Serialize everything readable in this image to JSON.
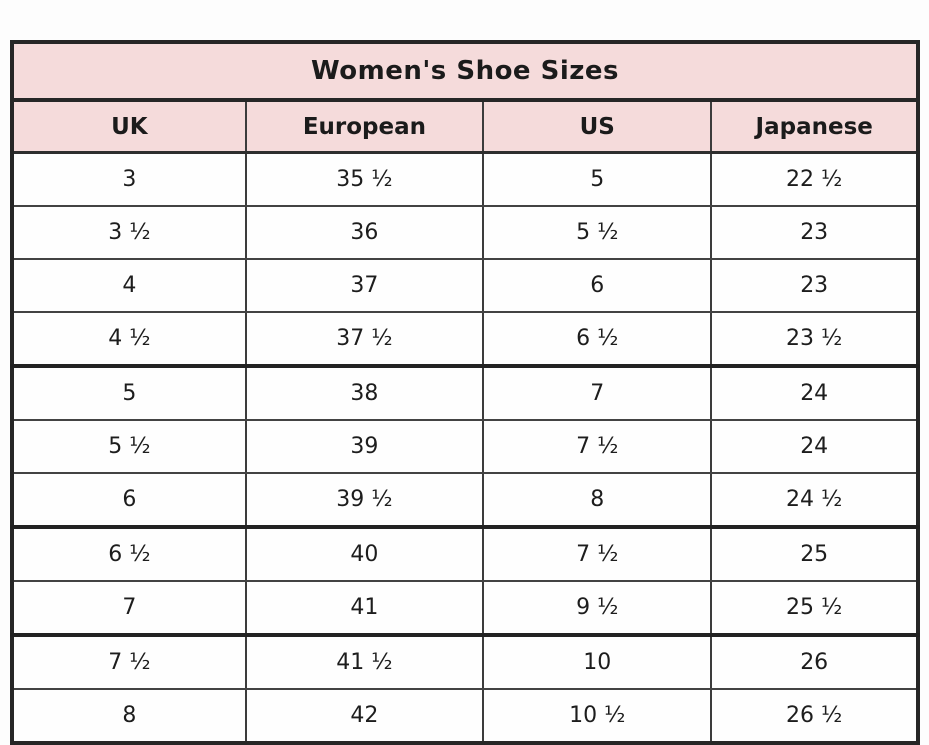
{
  "table": {
    "title": "Women's Shoe Sizes",
    "columns": [
      "UK",
      "European",
      "US",
      "Japanese"
    ],
    "rows": [
      [
        "3",
        "35 ½",
        "5",
        "22 ½"
      ],
      [
        "3 ½",
        "36",
        "5 ½",
        "23"
      ],
      [
        "4",
        "37",
        "6",
        "23"
      ],
      [
        "4 ½",
        "37 ½",
        "6 ½",
        "23 ½"
      ],
      [
        "5",
        "38",
        "7",
        "24"
      ],
      [
        "5 ½",
        "39",
        "7 ½",
        "24"
      ],
      [
        "6",
        "39 ½",
        "8",
        "24 ½"
      ],
      [
        "6 ½",
        "40",
        "7 ½",
        "25"
      ],
      [
        "7",
        "41",
        "9 ½",
        "25 ½"
      ],
      [
        "7 ½",
        "41 ½",
        "10",
        "26"
      ],
      [
        "8",
        "42",
        "10 ½",
        "26 ½"
      ]
    ],
    "thick_border_after_rows": [
      4,
      7,
      9
    ],
    "colors": {
      "header_background": "#f5dbdb",
      "outer_border": "#262626",
      "grid_line": "#434343",
      "text": "#1d1d1d",
      "page_background": "#fdfdfd"
    }
  }
}
